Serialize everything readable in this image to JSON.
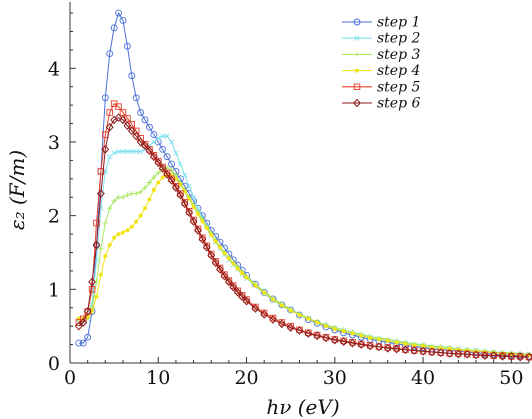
{
  "chart_data": {
    "type": "line",
    "title": "",
    "xlabel": "hν (eV)",
    "ylabel": "ε₂ (F/m)",
    "xlim": [
      0,
      52
    ],
    "ylim": [
      0,
      4.9
    ],
    "xticks": [
      0,
      10,
      20,
      30,
      40,
      50
    ],
    "yticks": [
      0,
      1,
      2,
      3,
      4
    ],
    "grid": false,
    "legend_position": "top-right",
    "series": [
      {
        "name": "step 1",
        "color": "#4a6fd8",
        "marker": "circle",
        "x": [
          1,
          1.5,
          2,
          2.5,
          3,
          3.5,
          4,
          4.5,
          5,
          5.5,
          6,
          6.5,
          7,
          7.5,
          8,
          8.5,
          9,
          9.5,
          10,
          10.5,
          11,
          11.5,
          12,
          12.5,
          13,
          13.5,
          14,
          14.5,
          15,
          15.5,
          16,
          16.5,
          17,
          17.5,
          18,
          18.5,
          19,
          19.5,
          20,
          21,
          22,
          23,
          24,
          25,
          26,
          27,
          28,
          29,
          30,
          31,
          32,
          33,
          34,
          35,
          36,
          37,
          38,
          39,
          40,
          41,
          42,
          43,
          44,
          45,
          46,
          47,
          48,
          49,
          50,
          51,
          52
        ],
        "y": [
          0.27,
          0.27,
          0.35,
          0.7,
          1.6,
          2.6,
          3.6,
          4.2,
          4.55,
          4.75,
          4.65,
          4.3,
          3.9,
          3.6,
          3.4,
          3.3,
          3.2,
          3.1,
          3.0,
          2.9,
          2.8,
          2.7,
          2.6,
          2.5,
          2.4,
          2.3,
          2.2,
          2.1,
          2.0,
          1.9,
          1.8,
          1.72,
          1.64,
          1.56,
          1.48,
          1.4,
          1.33,
          1.26,
          1.19,
          1.07,
          0.96,
          0.87,
          0.79,
          0.72,
          0.65,
          0.59,
          0.54,
          0.49,
          0.45,
          0.41,
          0.38,
          0.35,
          0.32,
          0.3,
          0.28,
          0.26,
          0.24,
          0.22,
          0.21,
          0.19,
          0.18,
          0.17,
          0.16,
          0.15,
          0.14,
          0.13,
          0.12,
          0.11,
          0.1,
          0.1,
          0.09
        ]
      },
      {
        "name": "step 2",
        "color": "#7fe0f0",
        "marker": "x",
        "x": [
          1,
          1.5,
          2,
          2.5,
          3,
          3.5,
          4,
          4.5,
          5,
          5.5,
          6,
          6.5,
          7,
          7.5,
          8,
          8.5,
          9,
          9.5,
          10,
          10.5,
          11,
          11.5,
          12,
          12.5,
          13,
          13.5,
          14,
          14.5,
          15,
          15.5,
          16,
          16.5,
          17,
          17.5,
          18,
          18.5,
          19,
          19.5,
          20,
          21,
          22,
          23,
          24,
          25,
          26,
          27,
          28,
          29,
          30,
          31,
          32,
          33,
          34,
          35,
          36,
          37,
          38,
          39,
          40,
          41,
          42,
          43,
          44,
          45,
          46,
          47,
          48,
          49,
          50,
          51,
          52
        ],
        "y": [
          0.55,
          0.55,
          0.6,
          0.8,
          1.4,
          2.1,
          2.6,
          2.8,
          2.85,
          2.87,
          2.87,
          2.87,
          2.87,
          2.87,
          2.87,
          2.9,
          2.95,
          3.0,
          3.05,
          3.08,
          3.08,
          3.0,
          2.85,
          2.7,
          2.55,
          2.4,
          2.25,
          2.1,
          1.97,
          1.85,
          1.74,
          1.64,
          1.55,
          1.47,
          1.4,
          1.33,
          1.27,
          1.21,
          1.15,
          1.04,
          0.94,
          0.85,
          0.78,
          0.71,
          0.65,
          0.6,
          0.55,
          0.51,
          0.47,
          0.44,
          0.41,
          0.38,
          0.35,
          0.33,
          0.31,
          0.29,
          0.27,
          0.25,
          0.24,
          0.22,
          0.21,
          0.2,
          0.19,
          0.18,
          0.17,
          0.16,
          0.15,
          0.14,
          0.13,
          0.12,
          0.12
        ]
      },
      {
        "name": "step 3",
        "color": "#a8e860",
        "marker": "plus",
        "x": [
          1,
          1.5,
          2,
          2.5,
          3,
          3.5,
          4,
          4.5,
          5,
          5.5,
          6,
          6.5,
          7,
          7.5,
          8,
          8.5,
          9,
          9.5,
          10,
          10.5,
          11,
          11.5,
          12,
          12.5,
          13,
          13.5,
          14,
          14.5,
          15,
          15.5,
          16,
          16.5,
          17,
          17.5,
          18,
          18.5,
          19,
          19.5,
          20,
          21,
          22,
          23,
          24,
          25,
          26,
          27,
          28,
          29,
          30,
          31,
          32,
          33,
          34,
          35,
          36,
          37,
          38,
          39,
          40,
          41,
          42,
          43,
          44,
          45,
          46,
          47,
          48,
          49,
          50,
          51,
          52
        ],
        "y": [
          0.6,
          0.6,
          0.62,
          0.75,
          1.1,
          1.55,
          1.9,
          2.1,
          2.2,
          2.25,
          2.25,
          2.28,
          2.3,
          2.3,
          2.32,
          2.38,
          2.45,
          2.52,
          2.58,
          2.63,
          2.65,
          2.62,
          2.55,
          2.45,
          2.35,
          2.25,
          2.15,
          2.05,
          1.95,
          1.85,
          1.76,
          1.67,
          1.58,
          1.5,
          1.43,
          1.36,
          1.3,
          1.24,
          1.18,
          1.07,
          0.97,
          0.88,
          0.8,
          0.73,
          0.67,
          0.61,
          0.56,
          0.52,
          0.48,
          0.45,
          0.42,
          0.39,
          0.36,
          0.34,
          0.32,
          0.3,
          0.28,
          0.26,
          0.25,
          0.23,
          0.22,
          0.21,
          0.19,
          0.18,
          0.17,
          0.16,
          0.15,
          0.14,
          0.14,
          0.13,
          0.12
        ]
      },
      {
        "name": "step 4",
        "color": "#f2e415",
        "marker": "dot",
        "x": [
          1,
          1.5,
          2,
          2.5,
          3,
          3.5,
          4,
          4.5,
          5,
          5.5,
          6,
          6.5,
          7,
          7.5,
          8,
          8.5,
          9,
          9.5,
          10,
          10.5,
          11,
          11.5,
          12,
          12.5,
          13,
          13.5,
          14,
          14.5,
          15,
          15.5,
          16,
          16.5,
          17,
          17.5,
          18,
          18.5,
          19,
          19.5,
          20,
          21,
          22,
          23,
          24,
          25,
          26,
          27,
          28,
          29,
          30,
          31,
          32,
          33,
          34,
          35,
          36,
          37,
          38,
          39,
          40,
          41,
          42,
          43,
          44,
          45,
          46,
          47,
          48,
          49,
          50,
          51,
          52
        ],
        "y": [
          0.6,
          0.6,
          0.62,
          0.7,
          0.9,
          1.2,
          1.45,
          1.6,
          1.7,
          1.75,
          1.77,
          1.8,
          1.85,
          1.92,
          2.0,
          2.1,
          2.22,
          2.35,
          2.45,
          2.52,
          2.55,
          2.55,
          2.5,
          2.42,
          2.33,
          2.23,
          2.12,
          2.02,
          1.92,
          1.83,
          1.74,
          1.65,
          1.57,
          1.49,
          1.42,
          1.35,
          1.28,
          1.22,
          1.16,
          1.05,
          0.95,
          0.86,
          0.78,
          0.71,
          0.65,
          0.6,
          0.55,
          0.5,
          0.46,
          0.43,
          0.4,
          0.37,
          0.34,
          0.32,
          0.3,
          0.28,
          0.26,
          0.24,
          0.23,
          0.21,
          0.2,
          0.19,
          0.18,
          0.17,
          0.16,
          0.15,
          0.14,
          0.13,
          0.12,
          0.11,
          0.11
        ]
      },
      {
        "name": "step 5",
        "color": "#e8402a",
        "marker": "square",
        "x": [
          1,
          1.5,
          2,
          2.5,
          3,
          3.5,
          4,
          4.5,
          5,
          5.5,
          6,
          6.5,
          7,
          7.5,
          8,
          8.5,
          9,
          9.5,
          10,
          10.5,
          11,
          11.5,
          12,
          12.5,
          13,
          13.5,
          14,
          14.5,
          15,
          15.5,
          16,
          16.5,
          17,
          17.5,
          18,
          18.5,
          19,
          19.5,
          20,
          21,
          22,
          23,
          24,
          25,
          26,
          27,
          28,
          29,
          30,
          31,
          32,
          33,
          34,
          35,
          36,
          37,
          38,
          39,
          40,
          41,
          42,
          43,
          44,
          45,
          46,
          47,
          48,
          49,
          50,
          51,
          52
        ],
        "y": [
          0.55,
          0.6,
          0.7,
          1.0,
          1.9,
          2.6,
          3.1,
          3.4,
          3.52,
          3.48,
          3.4,
          3.32,
          3.24,
          3.15,
          3.05,
          2.97,
          2.9,
          2.82,
          2.74,
          2.66,
          2.58,
          2.5,
          2.4,
          2.3,
          2.18,
          2.06,
          1.94,
          1.82,
          1.7,
          1.59,
          1.48,
          1.38,
          1.29,
          1.2,
          1.12,
          1.05,
          0.98,
          0.92,
          0.86,
          0.76,
          0.68,
          0.61,
          0.55,
          0.5,
          0.45,
          0.41,
          0.38,
          0.35,
          0.32,
          0.3,
          0.28,
          0.26,
          0.24,
          0.22,
          0.21,
          0.2,
          0.18,
          0.17,
          0.16,
          0.15,
          0.14,
          0.13,
          0.13,
          0.12,
          0.11,
          0.11,
          0.1,
          0.1,
          0.09,
          0.09,
          0.08
        ]
      },
      {
        "name": "step 6",
        "color": "#8a1a1a",
        "marker": "diamond",
        "x": [
          1,
          1.5,
          2,
          2.5,
          3,
          3.5,
          4,
          4.5,
          5,
          5.5,
          6,
          6.5,
          7,
          7.5,
          8,
          8.5,
          9,
          9.5,
          10,
          10.5,
          11,
          11.5,
          12,
          12.5,
          13,
          13.5,
          14,
          14.5,
          15,
          15.5,
          16,
          16.5,
          17,
          17.5,
          18,
          18.5,
          19,
          19.5,
          20,
          21,
          22,
          23,
          24,
          25,
          26,
          27,
          28,
          29,
          30,
          31,
          32,
          33,
          34,
          35,
          36,
          37,
          38,
          39,
          40,
          41,
          42,
          43,
          44,
          45,
          46,
          47,
          48,
          49,
          50,
          51,
          52
        ],
        "y": [
          0.5,
          0.55,
          0.7,
          1.1,
          1.6,
          2.3,
          2.9,
          3.2,
          3.3,
          3.33,
          3.3,
          3.22,
          3.15,
          3.08,
          3.0,
          2.95,
          2.88,
          2.8,
          2.72,
          2.64,
          2.56,
          2.48,
          2.38,
          2.28,
          2.16,
          2.04,
          1.92,
          1.8,
          1.68,
          1.57,
          1.46,
          1.36,
          1.27,
          1.18,
          1.1,
          1.03,
          0.96,
          0.9,
          0.84,
          0.74,
          0.66,
          0.59,
          0.53,
          0.48,
          0.44,
          0.4,
          0.37,
          0.34,
          0.31,
          0.29,
          0.27,
          0.25,
          0.23,
          0.22,
          0.2,
          0.19,
          0.18,
          0.17,
          0.16,
          0.15,
          0.14,
          0.13,
          0.12,
          0.12,
          0.11,
          0.1,
          0.1,
          0.09,
          0.09,
          0.08,
          0.08
        ]
      }
    ]
  }
}
